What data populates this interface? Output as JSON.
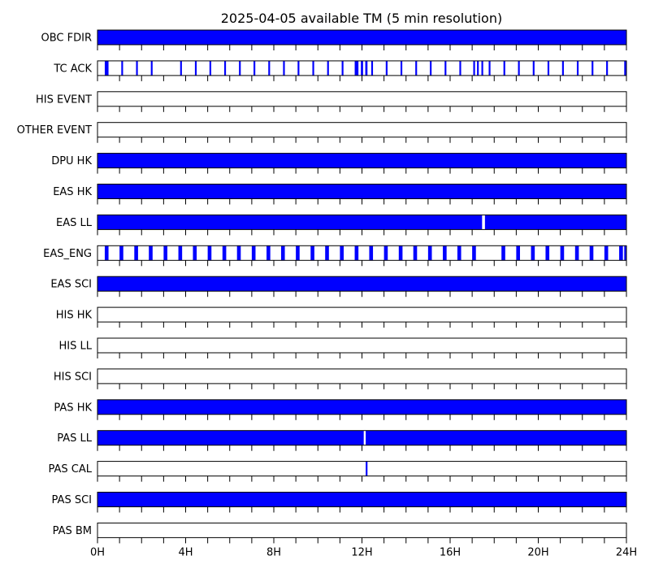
{
  "chart_data": {
    "type": "timeline",
    "title": "2025-04-05 available TM (5 min resolution)",
    "x_unit": "hours",
    "xlim": [
      0,
      24
    ],
    "x_tick_values": [
      0,
      4,
      8,
      12,
      16,
      20,
      24
    ],
    "x_tick_labels": [
      "0H",
      "4H",
      "8H",
      "12H",
      "16H",
      "20H",
      "24H"
    ],
    "x_minor_step": 1,
    "available_color": "#0000ff",
    "rows": [
      {
        "label": "OBC FDIR",
        "intervals": [
          [
            0,
            24
          ]
        ]
      },
      {
        "label": "TC ACK",
        "intervals": [
          [
            0.33,
            0.5
          ],
          [
            1.08,
            1.16
          ],
          [
            1.75,
            1.83
          ],
          [
            2.42,
            2.5
          ],
          [
            3.75,
            3.83
          ],
          [
            4.42,
            4.5
          ],
          [
            5.08,
            5.16
          ],
          [
            5.75,
            5.83
          ],
          [
            6.42,
            6.5
          ],
          [
            7.08,
            7.16
          ],
          [
            7.75,
            7.83
          ],
          [
            8.42,
            8.5
          ],
          [
            9.08,
            9.16
          ],
          [
            9.75,
            9.83
          ],
          [
            10.42,
            10.5
          ],
          [
            11.08,
            11.16
          ],
          [
            11.67,
            11.84
          ],
          [
            11.95,
            12.05
          ],
          [
            12.15,
            12.25
          ],
          [
            12.42,
            12.5
          ],
          [
            13.08,
            13.16
          ],
          [
            13.75,
            13.83
          ],
          [
            14.42,
            14.5
          ],
          [
            15.08,
            15.16
          ],
          [
            15.75,
            15.83
          ],
          [
            16.42,
            16.5
          ],
          [
            17.05,
            17.13
          ],
          [
            17.22,
            17.3
          ],
          [
            17.42,
            17.5
          ],
          [
            17.75,
            17.83
          ],
          [
            18.42,
            18.5
          ],
          [
            19.08,
            19.16
          ],
          [
            19.75,
            19.83
          ],
          [
            20.42,
            20.5
          ],
          [
            21.08,
            21.16
          ],
          [
            21.75,
            21.83
          ],
          [
            22.42,
            22.5
          ],
          [
            23.08,
            23.16
          ],
          [
            23.9,
            24
          ]
        ]
      },
      {
        "label": "HIS EVENT",
        "intervals": []
      },
      {
        "label": "OTHER EVENT",
        "intervals": []
      },
      {
        "label": "DPU HK",
        "intervals": [
          [
            0,
            24
          ]
        ]
      },
      {
        "label": "EAS HK",
        "intervals": [
          [
            0,
            24
          ]
        ]
      },
      {
        "label": "EAS LL",
        "intervals": [
          [
            0,
            17.45
          ],
          [
            17.58,
            24
          ]
        ]
      },
      {
        "label": "EAS_ENG",
        "intervals": [
          [
            0.33,
            0.5
          ],
          [
            1.0,
            1.17
          ],
          [
            1.67,
            1.84
          ],
          [
            2.33,
            2.5
          ],
          [
            3.0,
            3.17
          ],
          [
            3.67,
            3.84
          ],
          [
            4.33,
            4.5
          ],
          [
            5.0,
            5.17
          ],
          [
            5.67,
            5.84
          ],
          [
            6.33,
            6.5
          ],
          [
            7.0,
            7.17
          ],
          [
            7.67,
            7.84
          ],
          [
            8.33,
            8.5
          ],
          [
            9.0,
            9.17
          ],
          [
            9.67,
            9.84
          ],
          [
            10.33,
            10.5
          ],
          [
            11.0,
            11.17
          ],
          [
            11.67,
            11.84
          ],
          [
            12.33,
            12.5
          ],
          [
            13.0,
            13.17
          ],
          [
            13.67,
            13.84
          ],
          [
            14.33,
            14.5
          ],
          [
            15.0,
            15.17
          ],
          [
            15.67,
            15.84
          ],
          [
            16.33,
            16.5
          ],
          [
            17.0,
            17.17
          ],
          [
            18.33,
            18.5
          ],
          [
            19.0,
            19.17
          ],
          [
            19.67,
            19.84
          ],
          [
            20.33,
            20.5
          ],
          [
            21.0,
            21.17
          ],
          [
            21.67,
            21.84
          ],
          [
            22.33,
            22.5
          ],
          [
            23.0,
            23.17
          ],
          [
            23.67,
            23.84
          ],
          [
            23.9,
            24
          ]
        ]
      },
      {
        "label": "EAS SCI",
        "intervals": [
          [
            0,
            24
          ]
        ]
      },
      {
        "label": "HIS HK",
        "intervals": []
      },
      {
        "label": "HIS LL",
        "intervals": []
      },
      {
        "label": "HIS SCI",
        "intervals": []
      },
      {
        "label": "PAS HK",
        "intervals": [
          [
            0,
            24
          ]
        ]
      },
      {
        "label": "PAS LL",
        "intervals": [
          [
            0,
            12.08
          ],
          [
            12.17,
            24
          ]
        ]
      },
      {
        "label": "PAS CAL",
        "intervals": [
          [
            12.17,
            12.25
          ]
        ]
      },
      {
        "label": "PAS SCI",
        "intervals": [
          [
            0,
            24
          ]
        ]
      },
      {
        "label": "PAS BM",
        "intervals": []
      }
    ]
  }
}
